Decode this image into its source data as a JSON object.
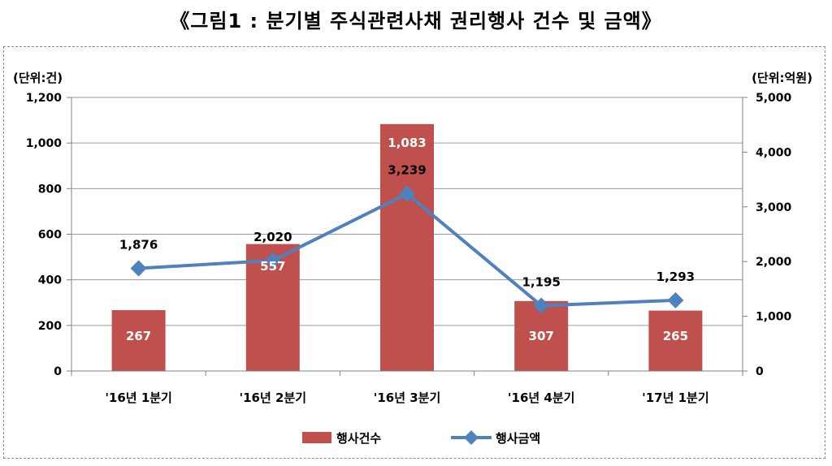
{
  "title": "《그림1 : 분기별 주식관련사채 권리행사 건수 및 금액》",
  "chart_data": {
    "type": "bar",
    "title": "《그림1 : 분기별 주식관련사채 권리행사 건수 및 금액》",
    "categories": [
      "'16년 1분기",
      "'16년 2분기",
      "'16년 3분기",
      "'16년 4분기",
      "'17년 1분기"
    ],
    "left_axis": {
      "unit_label": "(단위:건)",
      "ylim": [
        0,
        1200
      ],
      "ticks": [
        0,
        200,
        400,
        600,
        800,
        1000,
        1200
      ],
      "tick_labels": [
        "0",
        "200",
        "400",
        "600",
        "800",
        "1,000",
        "1,200"
      ]
    },
    "right_axis": {
      "unit_label": "(단위:억원)",
      "ylim": [
        0,
        5000
      ],
      "ticks": [
        0,
        1000,
        2000,
        3000,
        4000,
        5000
      ],
      "tick_labels": [
        "0",
        "1,000",
        "2,000",
        "3,000",
        "4,000",
        "5,000"
      ]
    },
    "series": [
      {
        "name": "행사건수",
        "type": "bar",
        "axis": "left",
        "color": "#c0504d",
        "values": [
          267,
          557,
          1083,
          307,
          265
        ],
        "labels": [
          "267",
          "557",
          "1,083",
          "307",
          "265"
        ]
      },
      {
        "name": "행사금액",
        "type": "line",
        "axis": "right",
        "color": "#4f81bd",
        "values": [
          1876,
          2020,
          3239,
          1195,
          1293
        ],
        "labels": [
          "1,876",
          "2,020",
          "3,239",
          "1,195",
          "1,293"
        ]
      }
    ],
    "grid": true,
    "legend": "bottom"
  }
}
